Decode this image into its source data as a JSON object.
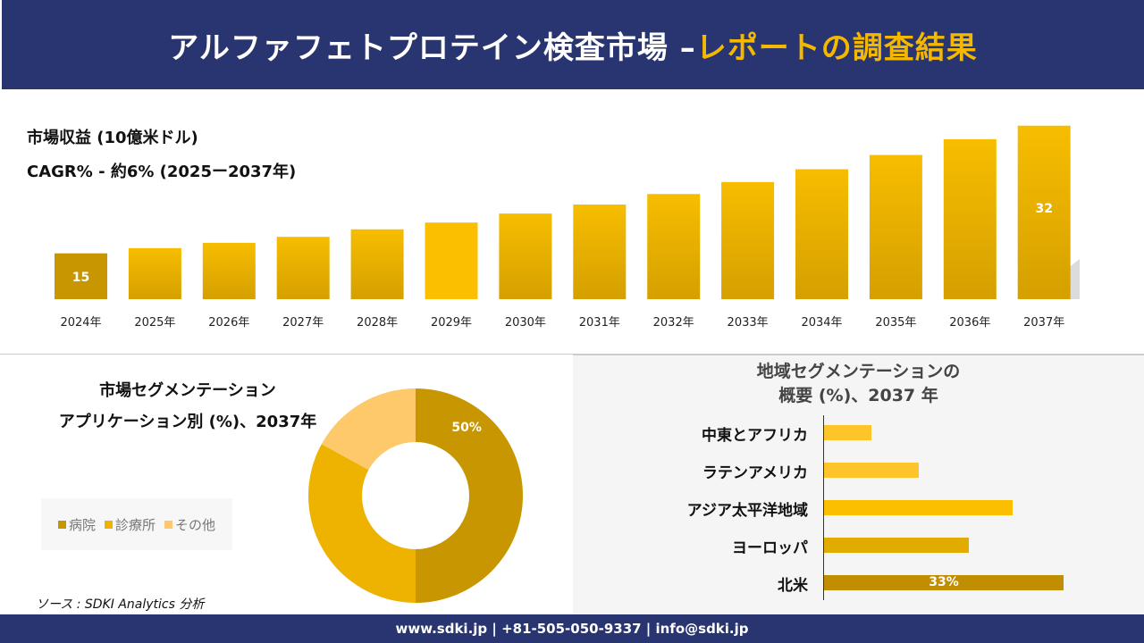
{
  "header": {
    "title_main": "アルファフェトプロテイン検査市場 –",
    "title_accent": "レポートの調査結果"
  },
  "revenue": {
    "label": "市場収益 (10億米ドル)",
    "cagr": "CAGR% - 約6% (2025ー2037年)"
  },
  "chart_data": [
    {
      "type": "bar",
      "categories": [
        "2024年",
        "2025年",
        "2026年",
        "2027年",
        "2028年",
        "2029年",
        "2030年",
        "2031年",
        "2032年",
        "2033年",
        "2034年",
        "2035年",
        "2036年",
        "2037年"
      ],
      "values": [
        15,
        15.7,
        16.4,
        17.2,
        18.2,
        19.1,
        20.3,
        21.5,
        22.9,
        24.5,
        26.2,
        28.1,
        30.2,
        32
      ],
      "data_labels": {
        "0": "15",
        "13": "32"
      },
      "title": "市場収益 (10億米ドル)",
      "xlabel": "",
      "ylabel": ""
    },
    {
      "type": "pie",
      "title": "市場セグメンテーション アプリケーション別 (%)、2037年",
      "categories": [
        "病院",
        "診療所",
        "その他"
      ],
      "values": [
        50,
        33,
        17
      ],
      "colors": [
        "#c89600",
        "#eeb200",
        "#fdc96a"
      ],
      "data_labels": {
        "0": "50%"
      },
      "legend": "left"
    },
    {
      "type": "bar",
      "orientation": "horizontal",
      "title": "地域セグメンテーションの概要 (%)、2037 年",
      "categories": [
        "中東とアフリカ",
        "ラテンアメリカ",
        "アジア太平洋地域",
        "ヨーロッパ",
        "北米"
      ],
      "values": [
        6.5,
        13,
        26,
        20,
        33
      ],
      "colors": [
        "#fdc52a",
        "#fdc52a",
        "#fbbf00",
        "#e2ab00",
        "#c08e00"
      ],
      "data_labels": {
        "4": "33%"
      }
    }
  ],
  "segment": {
    "title1": "市場セグメンテーション",
    "title2": "アプリケーション別 (%)、2037年",
    "legend": [
      "病院",
      "診療所",
      "その他"
    ],
    "label": "50%"
  },
  "region": {
    "title1": "地域セグメンテーションの",
    "title2": "概要 (%)、2037 年",
    "labels": [
      "中東とアフリカ",
      "ラテンアメリカ",
      "アジア太平洋地域",
      "ヨーロッパ",
      "北米"
    ],
    "bar_label": "33%"
  },
  "source": "ソース : SDKI Analytics 分析",
  "footer": "www.sdki.jp | +81-505-050-9337 | info@sdki.jp"
}
